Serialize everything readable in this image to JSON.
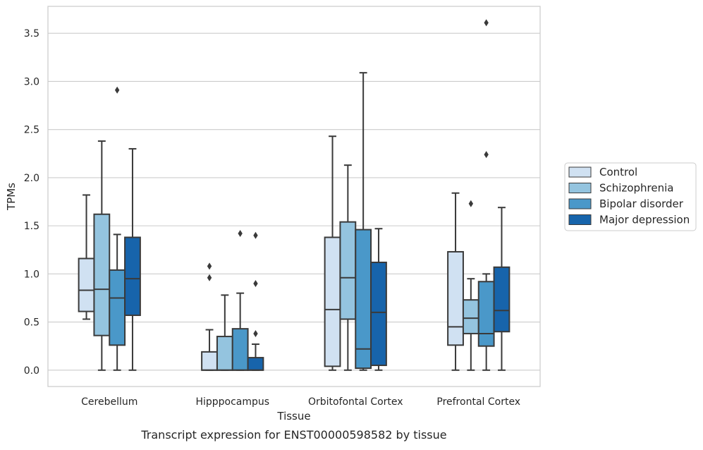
{
  "chart_data": {
    "type": "boxplot",
    "xlabel": "Tissue",
    "ylabel": "TPMs",
    "caption": "Transcript expression for ENST00000598582 by tissue",
    "ylim": [
      -0.17,
      3.78
    ],
    "yticks": [
      "0.0",
      "0.5",
      "1.0",
      "1.5",
      "2.0",
      "2.5",
      "3.0",
      "3.5"
    ],
    "grid": "horizontal",
    "legend_position": "right",
    "categories": [
      "Cerebellum",
      "Hipppocampus",
      "Orbitofontal Cortex",
      "Prefrontal Cortex"
    ],
    "series": [
      {
        "name": "Control",
        "color": "#d0e1f2",
        "boxes": [
          {
            "low": 0.53,
            "q1": 0.61,
            "median": 0.83,
            "q3": 1.16,
            "high": 1.82,
            "outliers": []
          },
          {
            "low": 0.0,
            "q1": 0.0,
            "median": 0.0,
            "q3": 0.19,
            "high": 0.42,
            "outliers": [
              0.96,
              1.08
            ]
          },
          {
            "low": 0.0,
            "q1": 0.04,
            "median": 0.63,
            "q3": 1.38,
            "high": 2.43,
            "outliers": []
          },
          {
            "low": 0.0,
            "q1": 0.26,
            "median": 0.45,
            "q3": 1.23,
            "high": 1.84,
            "outliers": []
          }
        ]
      },
      {
        "name": "Schizophrenia",
        "color": "#94c4df",
        "boxes": [
          {
            "low": 0.0,
            "q1": 0.36,
            "median": 0.84,
            "q3": 1.62,
            "high": 2.38,
            "outliers": []
          },
          {
            "low": 0.0,
            "q1": 0.0,
            "median": 0.0,
            "q3": 0.35,
            "high": 0.78,
            "outliers": []
          },
          {
            "low": 0.0,
            "q1": 0.53,
            "median": 0.96,
            "q3": 1.54,
            "high": 2.13,
            "outliers": []
          },
          {
            "low": 0.0,
            "q1": 0.38,
            "median": 0.54,
            "q3": 0.73,
            "high": 0.95,
            "outliers": [
              1.73
            ]
          }
        ]
      },
      {
        "name": "Bipolar disorder",
        "color": "#4a98c9",
        "boxes": [
          {
            "low": 0.0,
            "q1": 0.26,
            "median": 0.75,
            "q3": 1.04,
            "high": 1.41,
            "outliers": [
              2.91
            ]
          },
          {
            "low": 0.0,
            "q1": 0.0,
            "median": 0.0,
            "q3": 0.43,
            "high": 0.8,
            "outliers": [
              1.42
            ]
          },
          {
            "low": 0.0,
            "q1": 0.02,
            "median": 0.22,
            "q3": 1.46,
            "high": 3.09,
            "outliers": []
          },
          {
            "low": 0.0,
            "q1": 0.25,
            "median": 0.38,
            "q3": 0.92,
            "high": 1.0,
            "outliers": [
              2.24,
              3.61
            ]
          }
        ]
      },
      {
        "name": "Major depression",
        "color": "#1764ab",
        "boxes": [
          {
            "low": 0.0,
            "q1": 0.57,
            "median": 0.95,
            "q3": 1.38,
            "high": 2.3,
            "outliers": []
          },
          {
            "low": 0.0,
            "q1": 0.0,
            "median": 0.0,
            "q3": 0.13,
            "high": 0.27,
            "outliers": [
              0.38,
              0.9,
              1.4
            ]
          },
          {
            "low": 0.0,
            "q1": 0.05,
            "median": 0.6,
            "q3": 1.12,
            "high": 1.47,
            "outliers": []
          },
          {
            "low": 0.0,
            "q1": 0.4,
            "median": 0.62,
            "q3": 1.07,
            "high": 1.69,
            "outliers": []
          }
        ]
      }
    ]
  }
}
